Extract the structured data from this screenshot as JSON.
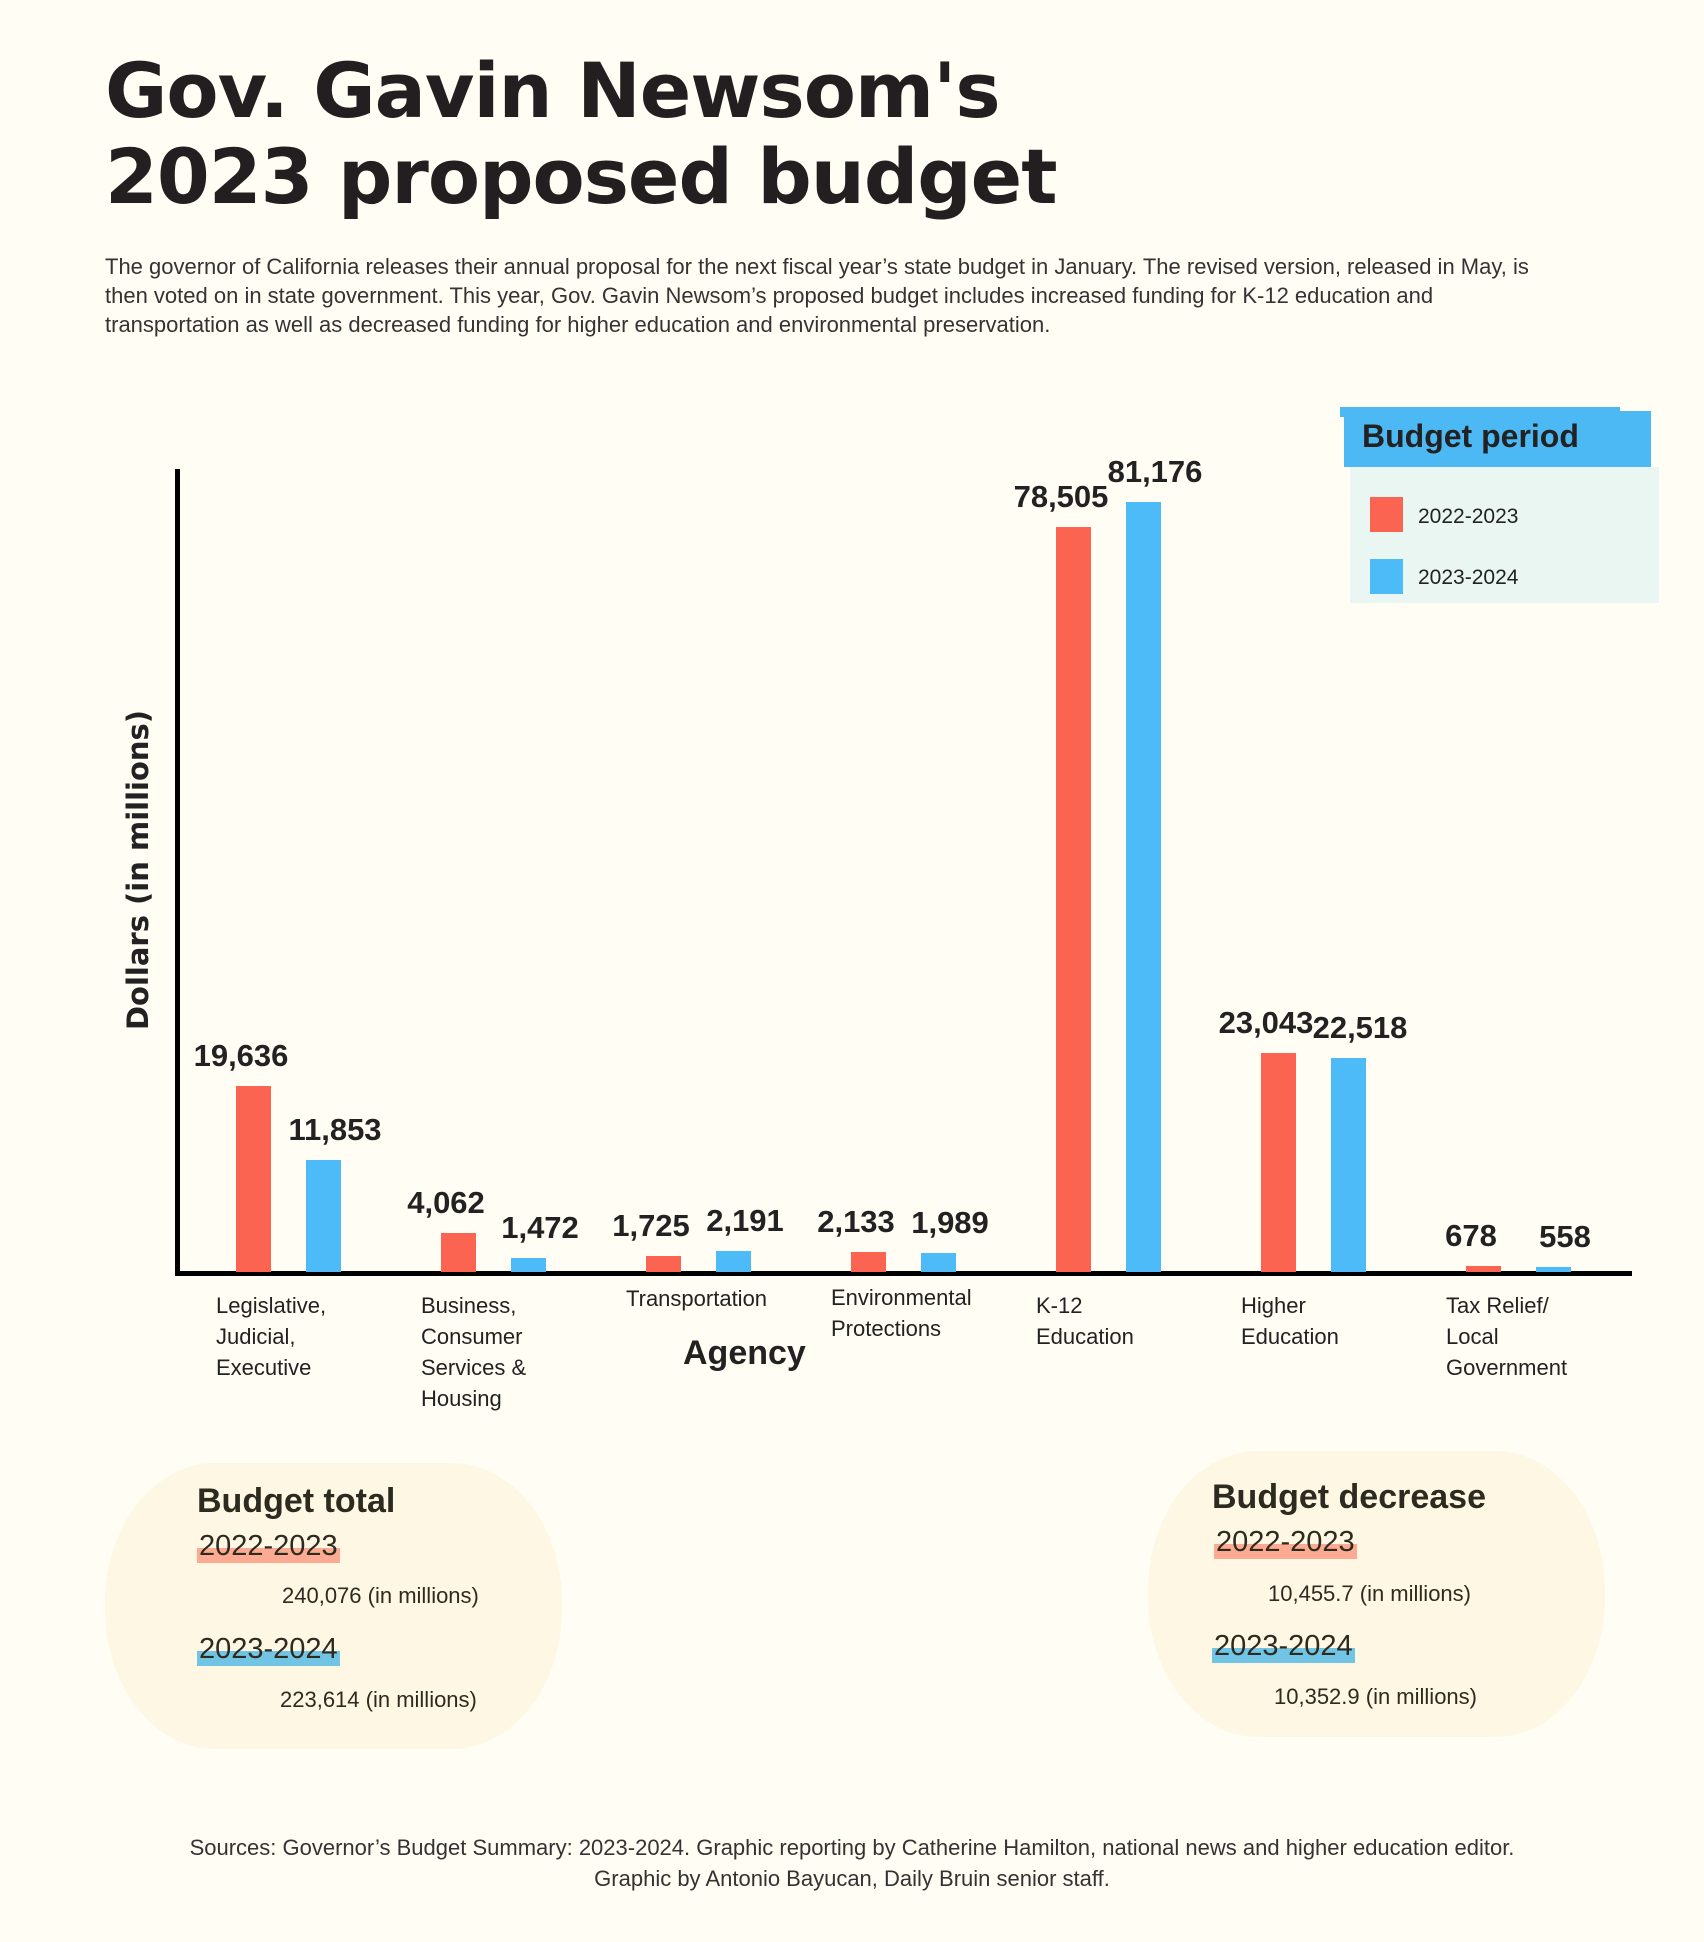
{
  "title_line1": "Gov. Gavin Newsom's",
  "title_line2": "2023 proposed budget",
  "description": "The governor of California releases their annual proposal for the next fiscal year’s state budget in January. The revised version, released in May, is then voted on in state government. This year, Gov. Gavin Newsom’s proposed budget includes increased funding for K-12 education and transportation as well as decreased funding for higher education and environmental preservation.",
  "colors": {
    "2022-2023": "#fa6450",
    "2023-2024": "#4cbbf8",
    "highlight_2022": "#fcab92",
    "highlight_2023": "#72c4e4"
  },
  "chart_data": {
    "type": "bar",
    "xlabel": "Agency",
    "ylabel": "Dollars (in millions)",
    "legend_title": "Budget period",
    "legend_position": "top-right",
    "categories": [
      "Legislative, Judicial, Executive",
      "Business, Consumer Services & Housing",
      "Transportation",
      "Environmental Protections",
      "K-12 Education",
      "Higher Education",
      "Tax Relief/ Local Government"
    ],
    "category_lines": [
      [
        "Legislative,",
        "Judicial,",
        "Executive"
      ],
      [
        "Business,",
        "Consumer",
        "Services &",
        "Housing"
      ],
      [
        "Transportation"
      ],
      [
        "Environmental",
        "Protections"
      ],
      [
        "K-12",
        "Education"
      ],
      [
        "Higher",
        "Education"
      ],
      [
        "Tax Relief/",
        "Local",
        "Government"
      ]
    ],
    "series": [
      {
        "name": "2022-2023",
        "values": [
          19636,
          4062,
          1725,
          2133,
          78505,
          23043,
          678
        ],
        "labels": [
          "19,636",
          "4,062",
          "1,725",
          "2,133",
          "78,505",
          "23,043",
          "678"
        ]
      },
      {
        "name": "2023-2024",
        "values": [
          11853,
          1472,
          2191,
          1989,
          81176,
          22518,
          558
        ],
        "labels": [
          "11,853",
          "1,472",
          "2,191",
          "1,989",
          "81,176",
          "22,518",
          "558"
        ]
      }
    ],
    "ylim": [
      0,
      81176
    ],
    "grid": false
  },
  "budget_total": {
    "title": "Budget total",
    "items": [
      {
        "year": "2022-2023",
        "amount": "240,076 (in millions)"
      },
      {
        "year": "2023-2024",
        "amount": "223,614 (in millions)"
      }
    ]
  },
  "budget_decrease": {
    "title": "Budget decrease",
    "items": [
      {
        "year": "2022-2023",
        "amount": "10,455.7 (in millions)"
      },
      {
        "year": "2023-2024",
        "amount": "10,352.9 (in millions)"
      }
    ]
  },
  "footer_line1": "Sources: Governor’s Budget Summary: 2023-2024. Graphic reporting by Catherine Hamilton, national news and higher education editor.",
  "footer_line2": "Graphic by Antonio Bayucan, Daily Bruin senior staff."
}
